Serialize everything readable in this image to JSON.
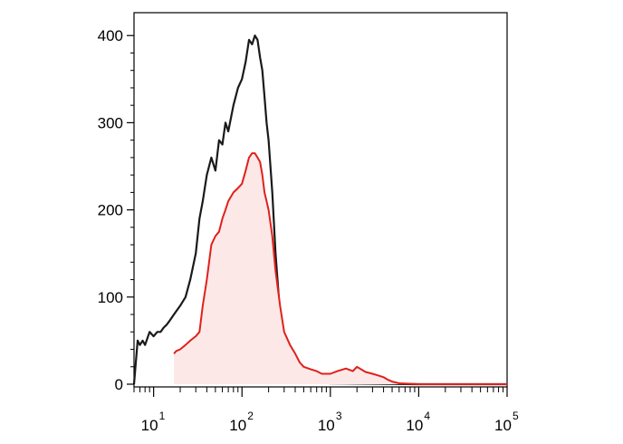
{
  "chart_data": {
    "type": "area",
    "title": "",
    "xlabel": "",
    "ylabel": "",
    "x_scale": "log",
    "xlim": [
      6,
      100000
    ],
    "ylim": [
      0,
      420
    ],
    "grid": false,
    "legend": "none",
    "x_ticks": [
      {
        "base": "10",
        "exp": "1",
        "value": 10
      },
      {
        "base": "10",
        "exp": "2",
        "value": 100
      },
      {
        "base": "10",
        "exp": "3",
        "value": 1000
      },
      {
        "base": "10",
        "exp": "4",
        "value": 10000
      },
      {
        "base": "10",
        "exp": "5",
        "value": 100000
      }
    ],
    "y_ticks": [
      {
        "label": "0",
        "value": 0
      },
      {
        "label": "100",
        "value": 100
      },
      {
        "label": "200",
        "value": 200
      },
      {
        "label": "300",
        "value": 300
      },
      {
        "label": "400",
        "value": 400
      }
    ],
    "series": [
      {
        "color": "#1a1a1a",
        "fill": "none",
        "x": [
          6,
          6.6,
          7,
          7.5,
          8,
          9,
          10,
          11,
          12,
          13,
          14,
          15,
          17,
          20,
          23,
          26,
          30,
          33,
          36,
          40,
          45,
          50,
          55,
          60,
          65,
          70,
          80,
          90,
          100,
          110,
          120,
          130,
          140,
          150,
          160,
          170,
          180,
          190,
          200,
          220,
          240,
          270,
          300,
          350,
          400,
          450,
          500,
          1000,
          10000,
          100000
        ],
        "y": [
          0,
          50,
          45,
          50,
          45,
          60,
          55,
          60,
          60,
          65,
          68,
          72,
          80,
          90,
          100,
          120,
          150,
          190,
          210,
          240,
          260,
          245,
          280,
          275,
          300,
          290,
          320,
          340,
          350,
          370,
          395,
          390,
          400,
          395,
          375,
          360,
          330,
          300,
          280,
          220,
          150,
          80,
          35,
          15,
          8,
          5,
          3,
          1,
          0,
          0
        ]
      },
      {
        "color": "#e0201a",
        "fill": "#fde8e8",
        "x": [
          17,
          18,
          20,
          23,
          26,
          30,
          33,
          36,
          40,
          45,
          50,
          55,
          60,
          65,
          70,
          80,
          90,
          100,
          110,
          120,
          130,
          140,
          150,
          160,
          170,
          180,
          190,
          200,
          220,
          240,
          270,
          300,
          350,
          400,
          450,
          500,
          600,
          700,
          800,
          900,
          1000,
          1200,
          1500,
          1800,
          2000,
          2500,
          3000,
          3500,
          4000,
          4500,
          5000,
          6000,
          10000,
          100000
        ],
        "y": [
          35,
          38,
          40,
          45,
          50,
          55,
          60,
          90,
          120,
          160,
          170,
          175,
          190,
          200,
          210,
          220,
          225,
          230,
          245,
          260,
          265,
          265,
          260,
          255,
          240,
          220,
          210,
          200,
          170,
          130,
          90,
          60,
          45,
          35,
          25,
          20,
          17,
          15,
          12,
          12,
          12,
          15,
          18,
          15,
          20,
          14,
          12,
          10,
          8,
          5,
          3,
          1,
          0,
          0
        ]
      }
    ]
  }
}
